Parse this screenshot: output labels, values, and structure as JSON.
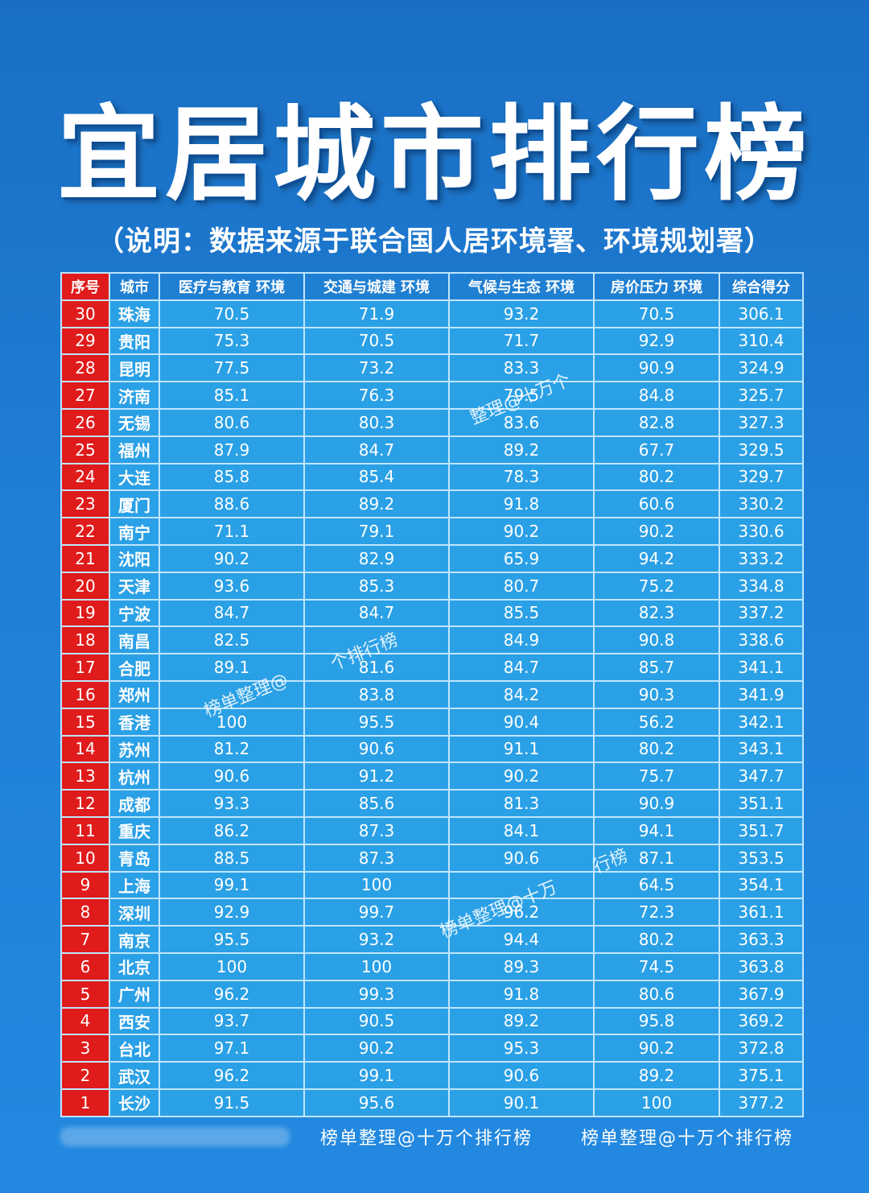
{
  "title": "宜居城市排行榜",
  "subtitle": "（说明：数据来源于联合国人居环境署、环境规划署）",
  "table": {
    "headers": [
      "序号",
      "城市",
      "医疗与教育 环境",
      "交通与城建 环境",
      "气候与生态 环境",
      "房价压力 环境",
      "综合得分"
    ],
    "rows": [
      [
        "30",
        "珠海",
        "70.5",
        "71.9",
        "93.2",
        "70.5",
        "306.1"
      ],
      [
        "29",
        "贵阳",
        "75.3",
        "70.5",
        "71.7",
        "92.9",
        "310.4"
      ],
      [
        "28",
        "昆明",
        "77.5",
        "73.2",
        "83.3",
        "90.9",
        "324.9"
      ],
      [
        "27",
        "济南",
        "85.1",
        "76.3",
        "79.5",
        "84.8",
        "325.7"
      ],
      [
        "26",
        "无锡",
        "80.6",
        "80.3",
        "83.6",
        "82.8",
        "327.3"
      ],
      [
        "25",
        "福州",
        "87.9",
        "84.7",
        "89.2",
        "67.7",
        "329.5"
      ],
      [
        "24",
        "大连",
        "85.8",
        "85.4",
        "78.3",
        "80.2",
        "329.7"
      ],
      [
        "23",
        "厦门",
        "88.6",
        "89.2",
        "91.8",
        "60.6",
        "330.2"
      ],
      [
        "22",
        "南宁",
        "71.1",
        "79.1",
        "90.2",
        "90.2",
        "330.6"
      ],
      [
        "21",
        "沈阳",
        "90.2",
        "82.9",
        "65.9",
        "94.2",
        "333.2"
      ],
      [
        "20",
        "天津",
        "93.6",
        "85.3",
        "80.7",
        "75.2",
        "334.8"
      ],
      [
        "19",
        "宁波",
        "84.7",
        "84.7",
        "85.5",
        "82.3",
        "337.2"
      ],
      [
        "18",
        "南昌",
        "82.5",
        "",
        "84.9",
        "90.8",
        "338.6"
      ],
      [
        "17",
        "合肥",
        "89.1",
        "81.6",
        "84.7",
        "85.7",
        "341.1"
      ],
      [
        "16",
        "郑州",
        "",
        "83.8",
        "84.2",
        "90.3",
        "341.9"
      ],
      [
        "15",
        "香港",
        "100",
        "95.5",
        "90.4",
        "56.2",
        "342.1"
      ],
      [
        "14",
        "苏州",
        "81.2",
        "90.6",
        "91.1",
        "80.2",
        "343.1"
      ],
      [
        "13",
        "杭州",
        "90.6",
        "91.2",
        "90.2",
        "75.7",
        "347.7"
      ],
      [
        "12",
        "成都",
        "93.3",
        "85.6",
        "81.3",
        "90.9",
        "351.1"
      ],
      [
        "11",
        "重庆",
        "86.2",
        "87.3",
        "84.1",
        "94.1",
        "351.7"
      ],
      [
        "10",
        "青岛",
        "88.5",
        "87.3",
        "90.6",
        "87.1",
        "353.5"
      ],
      [
        "9",
        "上海",
        "99.1",
        "100",
        "",
        "64.5",
        "354.1"
      ],
      [
        "8",
        "深圳",
        "92.9",
        "99.7",
        "96.2",
        "72.3",
        "361.1"
      ],
      [
        "7",
        "南京",
        "95.5",
        "93.2",
        "94.4",
        "80.2",
        "363.3"
      ],
      [
        "6",
        "北京",
        "100",
        "100",
        "89.3",
        "74.5",
        "363.8"
      ],
      [
        "5",
        "广州",
        "96.2",
        "99.3",
        "91.8",
        "80.6",
        "367.9"
      ],
      [
        "4",
        "西安",
        "93.7",
        "90.5",
        "89.2",
        "95.8",
        "369.2"
      ],
      [
        "3",
        "台北",
        "97.1",
        "90.2",
        "95.3",
        "90.2",
        "372.8"
      ],
      [
        "2",
        "武汉",
        "96.2",
        "99.1",
        "90.6",
        "89.2",
        "375.1"
      ],
      [
        "1",
        "长沙",
        "91.5",
        "95.6",
        "90.1",
        "100",
        "377.2"
      ]
    ]
  },
  "watermarks": [
    "整理@十万个",
    "个排行榜",
    "榜单整理@",
    "行榜",
    "榜单整理@十万"
  ],
  "footer": [
    "榜单整理@十万个排行榜",
    "榜单整理@十万个排行榜"
  ],
  "colors": {
    "background": "#1f7fd6",
    "rank_cell": "#e01b1b",
    "data_cell": "#2aa0e6",
    "grid": "#bfe6ff"
  }
}
